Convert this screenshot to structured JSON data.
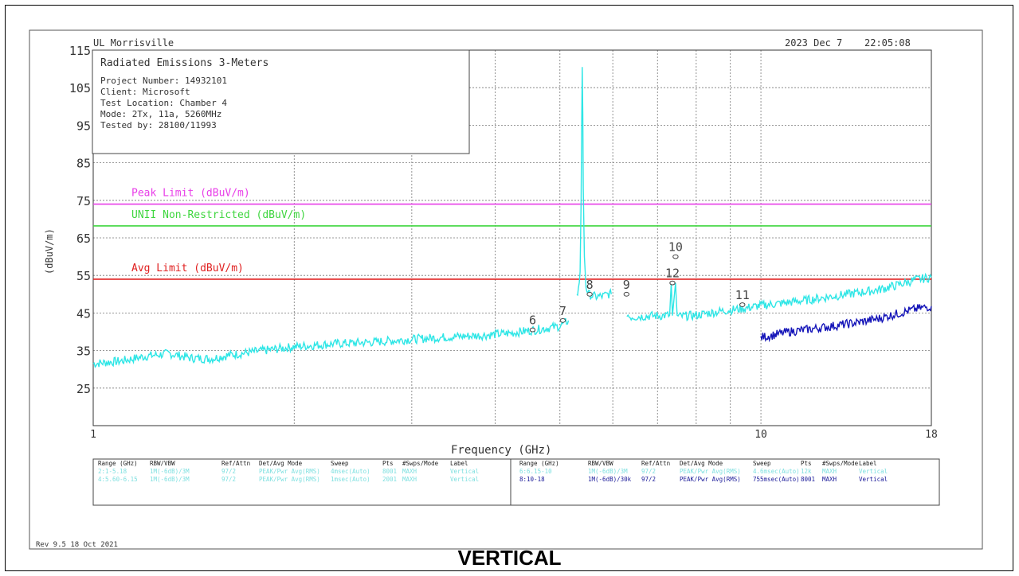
{
  "header": {
    "site": "UL Morrisville",
    "date": "2023 Dec 7",
    "time": "22:05:08"
  },
  "info_box": {
    "title": "Radiated Emissions 3-Meters",
    "lines": [
      "Project Number: 14932101",
      "Client: Microsoft",
      "Test Location: Chamber 4",
      "Mode: 2Tx, 11a, 5260MHz",
      "Tested by: 28100/11993"
    ]
  },
  "chart_data": {
    "type": "line",
    "xlabel": "Frequency (GHz)",
    "ylabel": "(dBuV/m)",
    "x_scale": "log",
    "xlim": [
      1,
      18
    ],
    "ylim": [
      15,
      115
    ],
    "x_ticks": [
      {
        "value": 1,
        "label": "1"
      },
      {
        "value": 10,
        "label": "10"
      },
      {
        "value": 18,
        "label": "18"
      }
    ],
    "y_ticks": [
      25,
      35,
      45,
      55,
      65,
      75,
      85,
      95,
      105,
      115
    ],
    "grid": true,
    "limits": [
      {
        "name": "Peak Limit (dBuV/m)",
        "value": 74,
        "color": "#e83ee8"
      },
      {
        "name": "UNII Non-Restricted (dBuV/m)",
        "value": 68.2,
        "color": "#3fd63f"
      },
      {
        "name": "Avg Limit (dBuV/m)",
        "value": 54,
        "color": "#e02020"
      }
    ],
    "series": [
      {
        "role": "peak",
        "color": "#2ee6e6",
        "segments": [
          [
            [
              1.0,
              31.5
            ],
            [
              1.1,
              32.2
            ],
            [
              1.2,
              33.5
            ],
            [
              1.3,
              34.2
            ],
            [
              1.4,
              33.0
            ],
            [
              1.5,
              32.8
            ],
            [
              1.6,
              33.8
            ],
            [
              1.8,
              35.0
            ],
            [
              2.0,
              36.0
            ],
            [
              2.3,
              36.8
            ],
            [
              2.6,
              37.2
            ],
            [
              3.0,
              38.0
            ],
            [
              3.4,
              38.6
            ],
            [
              3.8,
              39.0
            ],
            [
              4.2,
              39.6
            ],
            [
              4.5,
              40.3
            ],
            [
              4.8,
              41.0
            ],
            [
              5.0,
              41.5
            ],
            [
              5.15,
              43.0
            ]
          ],
          [
            [
              5.3,
              49.5
            ],
            [
              5.33,
              51.0
            ],
            [
              5.36,
              56.0
            ],
            [
              5.38,
              75.0
            ],
            [
              5.39,
              95.0
            ],
            [
              5.4,
              110.5
            ],
            [
              5.41,
              98.0
            ],
            [
              5.42,
              78.0
            ],
            [
              5.44,
              60.0
            ],
            [
              5.47,
              52.0
            ],
            [
              5.52,
              50.0
            ],
            [
              5.65,
              49.3
            ],
            [
              5.8,
              49.5
            ],
            [
              5.9,
              50.0
            ],
            [
              5.97,
              50.0
            ]
          ],
          [
            [
              6.3,
              45.0
            ],
            [
              6.35,
              44.0
            ],
            [
              6.5,
              44.0
            ],
            [
              6.8,
              44.2
            ],
            [
              7.1,
              44.3
            ],
            [
              7.3,
              44.4
            ],
            [
              7.34,
              53.0
            ],
            [
              7.37,
              44.3
            ],
            [
              7.45,
              53.0
            ],
            [
              7.49,
              44.0
            ],
            [
              7.7,
              44.2
            ],
            [
              8.0,
              44.4
            ],
            [
              8.5,
              45.2
            ],
            [
              9.0,
              45.8
            ],
            [
              9.5,
              46.3
            ],
            [
              10.0,
              47.0
            ],
            [
              11.0,
              47.8
            ],
            [
              12.0,
              48.7
            ],
            [
              13.0,
              49.6
            ],
            [
              14.0,
              50.4
            ],
            [
              15.0,
              51.2
            ],
            [
              16.0,
              52.4
            ],
            [
              17.0,
              53.8
            ],
            [
              18.0,
              54.5
            ]
          ]
        ]
      },
      {
        "role": "average",
        "color": "#1414b8",
        "segments": [
          [
            [
              10.0,
              38.5
            ],
            [
              10.5,
              39.2
            ],
            [
              11.0,
              40.0
            ],
            [
              12.0,
              40.8
            ],
            [
              13.0,
              41.7
            ],
            [
              14.0,
              42.5
            ],
            [
              15.0,
              43.5
            ],
            [
              16.0,
              44.8
            ],
            [
              17.0,
              46.0
            ],
            [
              18.0,
              46.8
            ]
          ]
        ]
      }
    ],
    "markers": [
      {
        "label": "6",
        "x": 4.55,
        "y": 40.5
      },
      {
        "label": "7",
        "x": 5.05,
        "y": 43.0
      },
      {
        "label": "8",
        "x": 5.54,
        "y": 50.0
      },
      {
        "label": "9",
        "x": 6.29,
        "y": 50.0
      },
      {
        "label": "10",
        "x": 7.45,
        "y": 60.0
      },
      {
        "label": "12",
        "x": 7.37,
        "y": 53.0
      },
      {
        "label": "11",
        "x": 9.38,
        "y": 47.2
      }
    ]
  },
  "settings_table": {
    "headers": [
      "Range (GHz)",
      "RBW/VBW",
      "Ref/Attn",
      "Det/Avg Mode",
      "Sweep",
      "Pts",
      "#Swps/Mode",
      "Label"
    ],
    "left_rows": [
      [
        "2:1-5.18",
        "1M(-6dB)/3M",
        "97/2",
        "PEAK/Pwr Avg(RMS)",
        "4msec(Auto)",
        "8001",
        "MAXH",
        "Vertical"
      ],
      [
        "4:5.60-6.15",
        "1M(-6dB)/3M",
        "97/2",
        "PEAK/Pwr Avg(RMS)",
        "1msec(Auto)",
        "2001",
        "MAXH",
        "Vertical"
      ]
    ],
    "right_rows": [
      [
        "6:6.15-10",
        "1M(-6dB)/3M",
        "97/2",
        "PEAK/Pwr Avg(RMS)",
        "4.6msec(Auto)",
        "12k",
        "MAXH",
        "Vertical"
      ],
      [
        "8:10-18",
        "1M(-6dB)/30k",
        "97/2",
        "PEAK/Pwr Avg(RMS)",
        "755msec(Auto)",
        "8001",
        "MAXH",
        "Vertical"
      ]
    ]
  },
  "footer": {
    "revision": "Rev 9.5 18 Oct 2021"
  },
  "caption": "VERTICAL"
}
